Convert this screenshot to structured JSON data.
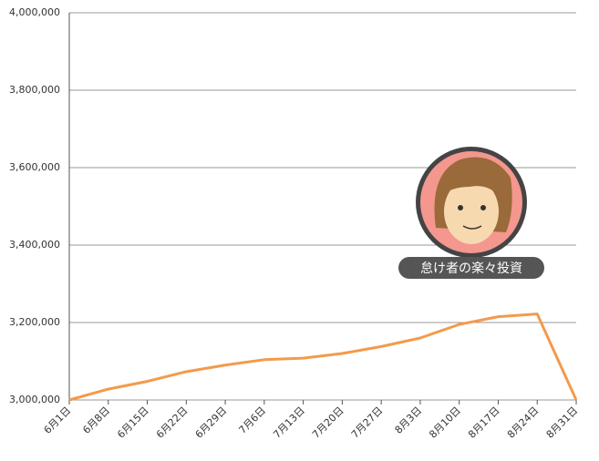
{
  "chart_data": {
    "type": "line",
    "categories": [
      "6月1日",
      "6月8日",
      "6月15日",
      "6月22日",
      "6月29日",
      "7月6日",
      "7月13日",
      "7月20日",
      "7月27日",
      "8月3日",
      "8月10日",
      "8月17日",
      "8月24日",
      "8月31日"
    ],
    "series": [
      {
        "color": "#f39a4b",
        "values": [
          3000000,
          3028000,
          3048000,
          3073000,
          3090000,
          3104000,
          3108000,
          3120000,
          3138000,
          3160000,
          3195000,
          3215000,
          3222000,
          3000000
        ]
      }
    ],
    "ylim": [
      3000000,
      4000000
    ],
    "yticks": [
      {
        "value": 3000000,
        "label": "3,000,000"
      },
      {
        "value": 3200000,
        "label": "3,200,000"
      },
      {
        "value": 3400000,
        "label": "3,400,000"
      },
      {
        "value": 3600000,
        "label": "3,600,000"
      },
      {
        "value": 3800000,
        "label": "3,800,000"
      },
      {
        "value": 4000000,
        "label": "4,000,000"
      }
    ],
    "grid": true,
    "watermark": "怠け者の楽々投資"
  }
}
